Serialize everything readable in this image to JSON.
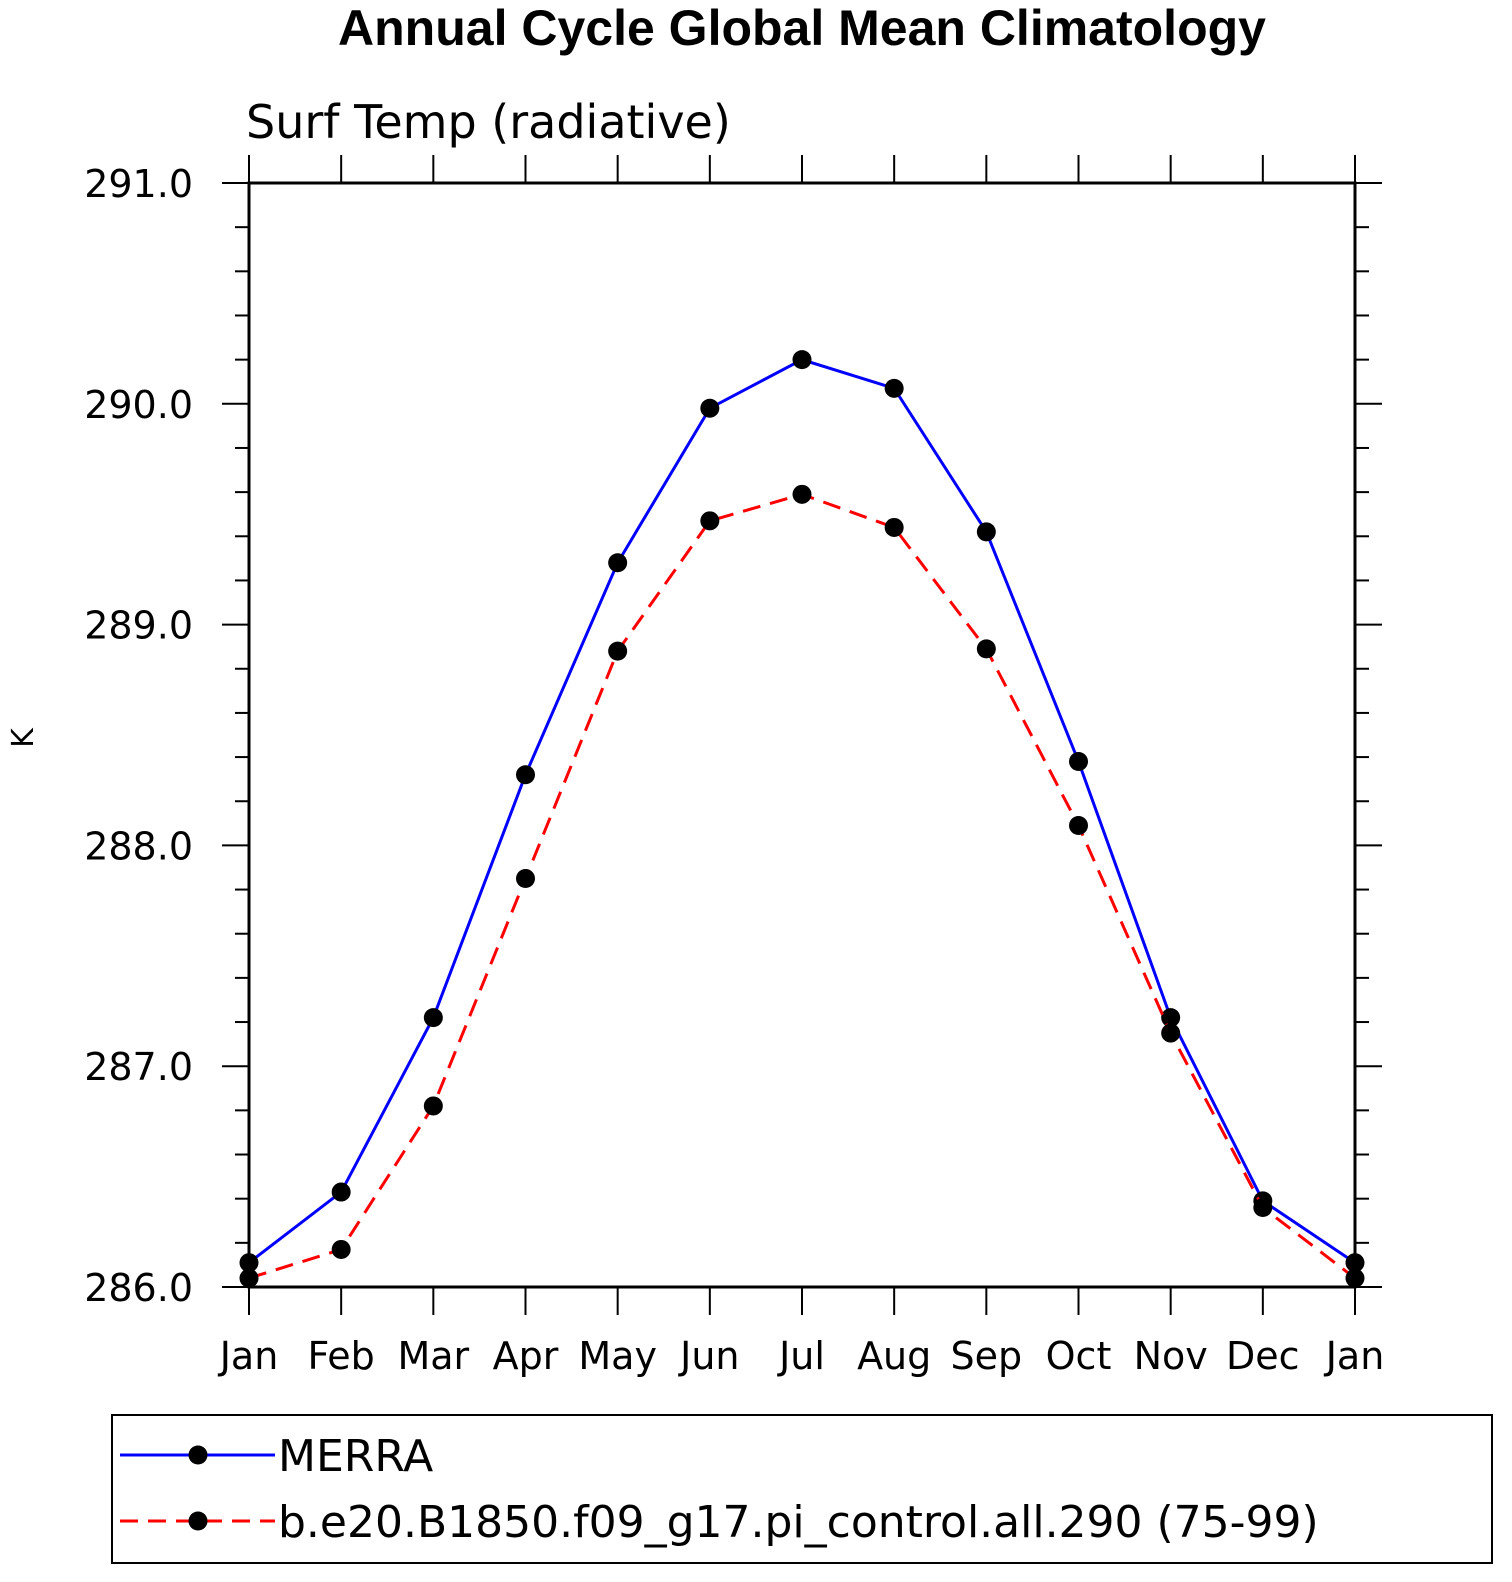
{
  "chart_data": {
    "type": "line",
    "title": "Annual Cycle Global Mean Climatology",
    "subtitle": "Surf Temp (radiative)",
    "xlabel": "",
    "ylabel": "K",
    "categories": [
      "Jan",
      "Feb",
      "Mar",
      "Apr",
      "May",
      "Jun",
      "Jul",
      "Aug",
      "Sep",
      "Oct",
      "Nov",
      "Dec",
      "Jan"
    ],
    "ylim": [
      286.0,
      291.0
    ],
    "yticks": [
      "286.0",
      "287.0",
      "288.0",
      "289.0",
      "290.0",
      "291.0"
    ],
    "grid": false,
    "legend_position": "bottom",
    "series": [
      {
        "name": "MERRA",
        "color": "#0000ff",
        "dash": "solid",
        "values": [
          286.11,
          286.43,
          287.22,
          288.32,
          289.28,
          289.98,
          290.2,
          290.07,
          289.42,
          288.38,
          287.22,
          286.39,
          286.11
        ]
      },
      {
        "name": "b.e20.B1850.f09_g17.pi_control.all.290 (75-99)",
        "color": "#ff0000",
        "dash": "dashed",
        "values": [
          286.04,
          286.17,
          286.82,
          287.85,
          288.88,
          289.47,
          289.59,
          289.44,
          288.89,
          288.09,
          287.15,
          286.36,
          286.04
        ]
      }
    ]
  }
}
